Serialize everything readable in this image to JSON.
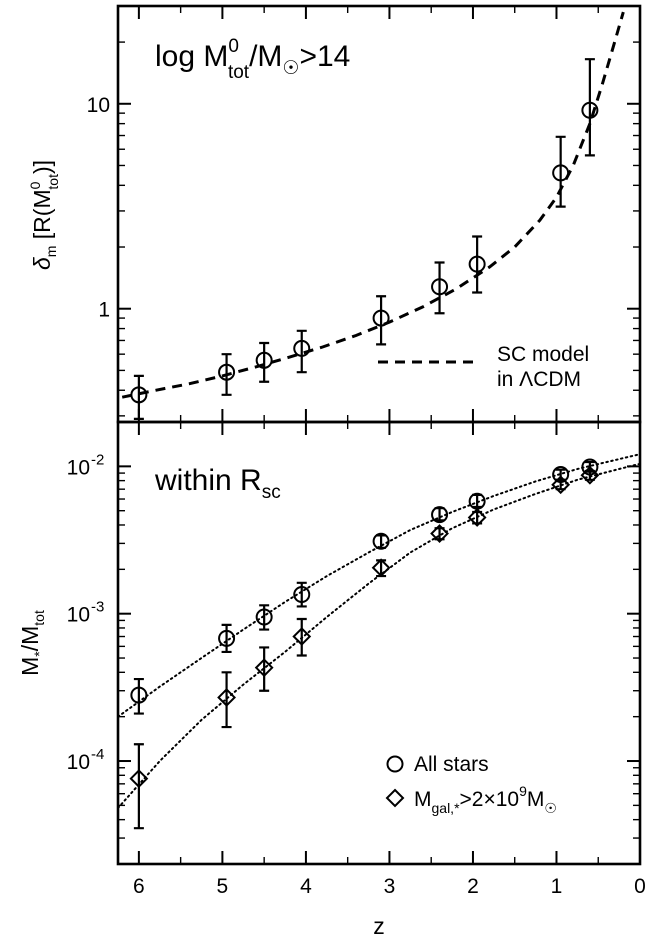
{
  "chart_data": [
    {
      "type": "scatter",
      "panel": "top",
      "xlabel": "z",
      "x_reversed": true,
      "xlim": [
        6.25,
        0
      ],
      "ylim": [
        0.28,
        30
      ],
      "yscale": "log",
      "ylabel": {
        "main": "δ",
        "sub": "m",
        "rest": " [R(M",
        "sup2": "0",
        "sub2": "tot",
        "end": ")]"
      },
      "annotation": {
        "text": "log M",
        "sup": "0",
        "sub": "tot",
        "mid": "/M",
        "tail": ">14"
      },
      "x_ticks": [
        "6",
        "5",
        "4",
        "3",
        "2",
        "1",
        "0"
      ],
      "y_ticks": [
        "1",
        "10"
      ],
      "series": [
        {
          "marker": "circle",
          "x": [
            6,
            4.95,
            4.5,
            4.05,
            3.1,
            2.4,
            1.95,
            0.95,
            0.6
          ],
          "y": [
            0.38,
            0.49,
            0.56,
            0.64,
            0.9,
            1.28,
            1.65,
            4.6,
            9.3
          ],
          "yerr_low": [
            0.29,
            0.38,
            0.44,
            0.49,
            0.67,
            0.95,
            1.2,
            3.15,
            5.6
          ],
          "yerr_high": [
            0.47,
            0.6,
            0.68,
            0.78,
            1.15,
            1.68,
            2.25,
            6.9,
            16.5
          ]
        }
      ],
      "model": {
        "style": "dashed",
        "x": [
          6.2,
          5.8,
          5.4,
          5.0,
          4.6,
          4.2,
          3.8,
          3.4,
          3.0,
          2.6,
          2.2,
          1.8,
          1.5,
          1.2,
          1.0,
          0.8,
          0.6,
          0.45,
          0.32,
          0.2
        ],
        "y": [
          0.37,
          0.4,
          0.43,
          0.47,
          0.52,
          0.58,
          0.65,
          0.74,
          0.86,
          1.02,
          1.25,
          1.6,
          2.0,
          2.7,
          3.5,
          5.0,
          8.0,
          12.5,
          19.0,
          28.0
        ]
      },
      "legend": {
        "line1": "SC model",
        "line2": "in ΛCDM",
        "position": "lower-right"
      }
    },
    {
      "type": "scatter",
      "panel": "bottom",
      "xlabel": "z",
      "x_reversed": true,
      "xlim": [
        6.25,
        0
      ],
      "ylim": [
        2e-05,
        0.02
      ],
      "yscale": "log",
      "ylabel": {
        "main": "M",
        "sub": "*",
        "mid": "/M",
        "sub2": "tot"
      },
      "annotation": {
        "text": "within R",
        "sub": "sc"
      },
      "x_ticks": [
        "6",
        "5",
        "4",
        "3",
        "2",
        "1",
        "0"
      ],
      "y_ticks": [
        {
          "base": "10",
          "exp": "-2",
          "value": 0.01
        },
        {
          "base": "10",
          "exp": "-3",
          "value": 0.001
        },
        {
          "base": "10",
          "exp": "-4",
          "value": 0.0001
        }
      ],
      "series": [
        {
          "name": "All stars",
          "marker": "circle",
          "x": [
            6,
            4.95,
            4.5,
            4.05,
            3.1,
            2.4,
            1.95,
            0.95,
            0.6
          ],
          "y": [
            0.00028,
            0.00068,
            0.00095,
            0.00135,
            0.0031,
            0.0047,
            0.0058,
            0.0088,
            0.0099
          ],
          "yerr_low": [
            0.00021,
            0.00055,
            0.00078,
            0.00112,
            0.0028,
            0.0043,
            0.0053,
            0.0081,
            0.0092
          ],
          "yerr_high": [
            0.00036,
            0.00084,
            0.00114,
            0.00162,
            0.0034,
            0.0052,
            0.0064,
            0.0095,
            0.0107
          ]
        },
        {
          "name": "M",
          "name_sub": "gal,*",
          "name_mid": ">2×10",
          "name_sup": "9",
          "name_tail": "M",
          "marker": "diamond",
          "x": [
            6,
            4.95,
            4.5,
            4.05,
            3.1,
            2.4,
            1.95,
            0.95,
            0.6
          ],
          "y": [
            7.6e-05,
            0.00027,
            0.00043,
            0.0007,
            0.00205,
            0.0035,
            0.0045,
            0.0075,
            0.0087
          ],
          "yerr_low": [
            3.5e-05,
            0.00017,
            0.0003,
            0.00052,
            0.0018,
            0.0032,
            0.0041,
            0.007,
            0.0081
          ],
          "yerr_high": [
            0.00013,
            0.0004,
            0.00059,
            0.00092,
            0.0023,
            0.0038,
            0.0049,
            0.0081,
            0.0093
          ]
        }
      ],
      "fits": [
        {
          "style": "dotted",
          "x": [
            6.25,
            5.75,
            5.25,
            4.75,
            4.25,
            3.75,
            3.25,
            2.75,
            2.25,
            1.75,
            1.25,
            0.75,
            0.25,
            0.0
          ],
          "y": [
            0.0002,
            0.00032,
            0.0005,
            0.00078,
            0.0012,
            0.0018,
            0.0026,
            0.0037,
            0.0049,
            0.0063,
            0.0079,
            0.0096,
            0.0112,
            0.0121
          ]
        },
        {
          "style": "dotted",
          "x": [
            6.25,
            5.75,
            5.25,
            4.75,
            4.25,
            3.75,
            3.25,
            2.75,
            2.25,
            1.75,
            1.25,
            0.75,
            0.25,
            0.0
          ],
          "y": [
            4.8e-05,
            0.0001,
            0.00019,
            0.00033,
            0.00055,
            0.00095,
            0.0016,
            0.0026,
            0.0038,
            0.0051,
            0.0065,
            0.0081,
            0.0096,
            0.0104
          ]
        }
      ],
      "legend": {
        "position": "lower-right"
      }
    }
  ]
}
